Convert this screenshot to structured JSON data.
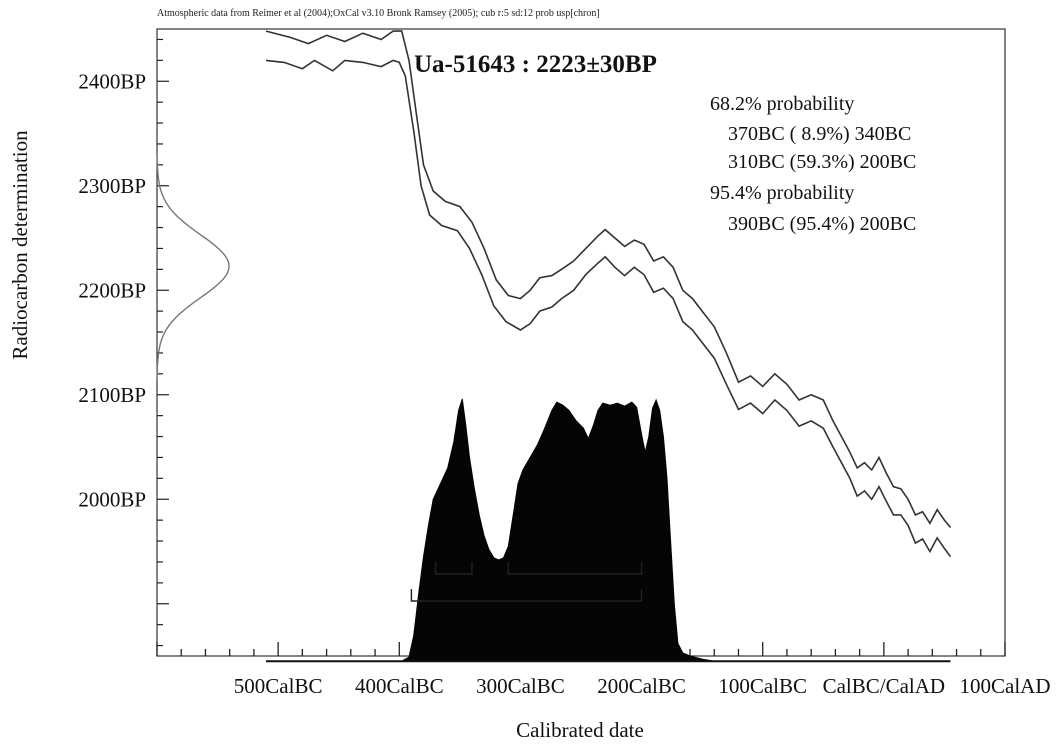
{
  "chart_data": {
    "type": "area",
    "header": "Atmospheric data from Reimer et al (2004);OxCal v3.10 Bronk Ramsey (2005); cub r:5 sd:12 prob usp[chron]",
    "title": "Ua-51643 : 2223±30BP",
    "xlabel": "Calibrated date",
    "ylabel": "Radiocarbon determination",
    "xlim": [
      -600,
      100
    ],
    "ylim": [
      1850,
      2450
    ],
    "x_tick_labels": [
      {
        "x": -500,
        "label": "500CalBC"
      },
      {
        "x": -400,
        "label": "400CalBC"
      },
      {
        "x": -300,
        "label": "300CalBC"
      },
      {
        "x": -200,
        "label": "200CalBC"
      },
      {
        "x": -100,
        "label": "100CalBC"
      },
      {
        "x": 0,
        "label": "CalBC/CalAD"
      },
      {
        "x": 100,
        "label": "100CalAD"
      }
    ],
    "y_tick_labels": [
      {
        "y": 2400,
        "label": "2400BP"
      },
      {
        "y": 2300,
        "label": "2300BP"
      },
      {
        "y": 2200,
        "label": "2200BP"
      },
      {
        "y": 2100,
        "label": "2100BP"
      },
      {
        "y": 2000,
        "label": "2000BP"
      }
    ],
    "annotations": [
      "68.2% probability",
      "370BC ( 8.9%) 340BC",
      "310BC (59.3%) 200BC",
      "95.4% probability",
      "390BC (95.4%) 200BC"
    ],
    "radiocarbon_measurement": {
      "mean": 2223,
      "sd": 30
    },
    "calibration_curve_upper": [
      [
        -510,
        2448
      ],
      [
        -490,
        2442
      ],
      [
        -475,
        2436
      ],
      [
        -460,
        2444
      ],
      [
        -445,
        2438
      ],
      [
        -430,
        2446
      ],
      [
        -415,
        2440
      ],
      [
        -405,
        2448
      ],
      [
        -398,
        2448
      ],
      [
        -392,
        2420
      ],
      [
        -386,
        2370
      ],
      [
        -380,
        2320
      ],
      [
        -372,
        2295
      ],
      [
        -362,
        2285
      ],
      [
        -350,
        2280
      ],
      [
        -340,
        2265
      ],
      [
        -330,
        2240
      ],
      [
        -320,
        2210
      ],
      [
        -310,
        2195
      ],
      [
        -300,
        2192
      ],
      [
        -292,
        2200
      ],
      [
        -284,
        2212
      ],
      [
        -274,
        2214
      ],
      [
        -266,
        2220
      ],
      [
        -256,
        2228
      ],
      [
        -246,
        2240
      ],
      [
        -236,
        2252
      ],
      [
        -230,
        2258
      ],
      [
        -222,
        2250
      ],
      [
        -214,
        2242
      ],
      [
        -206,
        2248
      ],
      [
        -198,
        2244
      ],
      [
        -190,
        2228
      ],
      [
        -182,
        2232
      ],
      [
        -174,
        2222
      ],
      [
        -166,
        2200
      ],
      [
        -158,
        2192
      ],
      [
        -150,
        2180
      ],
      [
        -140,
        2165
      ],
      [
        -130,
        2140
      ],
      [
        -120,
        2112
      ],
      [
        -110,
        2118
      ],
      [
        -100,
        2108
      ],
      [
        -90,
        2120
      ],
      [
        -80,
        2110
      ],
      [
        -70,
        2095
      ],
      [
        -60,
        2100
      ],
      [
        -50,
        2095
      ],
      [
        -42,
        2075
      ],
      [
        -35,
        2060
      ],
      [
        -28,
        2045
      ],
      [
        -22,
        2030
      ],
      [
        -16,
        2035
      ],
      [
        -10,
        2028
      ],
      [
        -4,
        2040
      ],
      [
        2,
        2025
      ],
      [
        8,
        2012
      ],
      [
        14,
        2010
      ],
      [
        20,
        2000
      ],
      [
        26,
        1985
      ],
      [
        32,
        1988
      ],
      [
        38,
        1977
      ],
      [
        44,
        1990
      ],
      [
        50,
        1980
      ],
      [
        55,
        1973
      ]
    ],
    "calibration_curve_lower": [
      [
        -510,
        2420
      ],
      [
        -495,
        2418
      ],
      [
        -480,
        2412
      ],
      [
        -470,
        2420
      ],
      [
        -455,
        2410
      ],
      [
        -445,
        2420
      ],
      [
        -430,
        2418
      ],
      [
        -415,
        2414
      ],
      [
        -405,
        2420
      ],
      [
        -400,
        2418
      ],
      [
        -395,
        2405
      ],
      [
        -388,
        2352
      ],
      [
        -382,
        2300
      ],
      [
        -375,
        2272
      ],
      [
        -365,
        2262
      ],
      [
        -352,
        2257
      ],
      [
        -342,
        2240
      ],
      [
        -332,
        2215
      ],
      [
        -322,
        2185
      ],
      [
        -312,
        2170
      ],
      [
        -300,
        2162
      ],
      [
        -292,
        2168
      ],
      [
        -284,
        2180
      ],
      [
        -274,
        2184
      ],
      [
        -266,
        2192
      ],
      [
        -256,
        2200
      ],
      [
        -246,
        2215
      ],
      [
        -236,
        2226
      ],
      [
        -230,
        2232
      ],
      [
        -222,
        2222
      ],
      [
        -214,
        2214
      ],
      [
        -206,
        2222
      ],
      [
        -198,
        2215
      ],
      [
        -190,
        2198
      ],
      [
        -182,
        2202
      ],
      [
        -174,
        2192
      ],
      [
        -166,
        2170
      ],
      [
        -158,
        2162
      ],
      [
        -150,
        2150
      ],
      [
        -140,
        2135
      ],
      [
        -130,
        2110
      ],
      [
        -120,
        2086
      ],
      [
        -110,
        2092
      ],
      [
        -100,
        2082
      ],
      [
        -90,
        2095
      ],
      [
        -80,
        2085
      ],
      [
        -70,
        2070
      ],
      [
        -60,
        2075
      ],
      [
        -50,
        2068
      ],
      [
        -42,
        2050
      ],
      [
        -35,
        2035
      ],
      [
        -28,
        2020
      ],
      [
        -22,
        2003
      ],
      [
        -16,
        2008
      ],
      [
        -10,
        2000
      ],
      [
        -4,
        2012
      ],
      [
        2,
        1998
      ],
      [
        8,
        1985
      ],
      [
        14,
        1985
      ],
      [
        20,
        1975
      ],
      [
        26,
        1958
      ],
      [
        32,
        1962
      ],
      [
        38,
        1950
      ],
      [
        44,
        1963
      ],
      [
        50,
        1953
      ],
      [
        55,
        1945
      ]
    ],
    "probability_distribution": [
      [
        -510,
        1845
      ],
      [
        -398,
        1845
      ],
      [
        -392,
        1849
      ],
      [
        -388,
        1870
      ],
      [
        -384,
        1910
      ],
      [
        -380,
        1945
      ],
      [
        -376,
        1975
      ],
      [
        -372,
        2000
      ],
      [
        -366,
        2015
      ],
      [
        -360,
        2030
      ],
      [
        -355,
        2055
      ],
      [
        -351,
        2085
      ],
      [
        -348,
        2096
      ],
      [
        -345,
        2070
      ],
      [
        -342,
        2040
      ],
      [
        -338,
        2010
      ],
      [
        -334,
        1985
      ],
      [
        -330,
        1965
      ],
      [
        -326,
        1952
      ],
      [
        -322,
        1944
      ],
      [
        -318,
        1942
      ],
      [
        -314,
        1944
      ],
      [
        -310,
        1955
      ],
      [
        -306,
        1985
      ],
      [
        -302,
        2015
      ],
      [
        -298,
        2028
      ],
      [
        -292,
        2040
      ],
      [
        -286,
        2052
      ],
      [
        -280,
        2068
      ],
      [
        -274,
        2085
      ],
      [
        -270,
        2093
      ],
      [
        -265,
        2090
      ],
      [
        -260,
        2085
      ],
      [
        -254,
        2075
      ],
      [
        -248,
        2068
      ],
      [
        -244,
        2058
      ],
      [
        -240,
        2070
      ],
      [
        -236,
        2085
      ],
      [
        -232,
        2092
      ],
      [
        -226,
        2090
      ],
      [
        -220,
        2092
      ],
      [
        -214,
        2089
      ],
      [
        -208,
        2093
      ],
      [
        -204,
        2088
      ],
      [
        -200,
        2062
      ],
      [
        -197,
        2045
      ],
      [
        -194,
        2060
      ],
      [
        -191,
        2087
      ],
      [
        -188,
        2095
      ],
      [
        -185,
        2085
      ],
      [
        -182,
        2060
      ],
      [
        -179,
        2020
      ],
      [
        -176,
        1960
      ],
      [
        -173,
        1900
      ],
      [
        -170,
        1862
      ],
      [
        -166,
        1853
      ],
      [
        -160,
        1850
      ],
      [
        -150,
        1847
      ],
      [
        -140,
        1845
      ],
      [
        55,
        1845
      ]
    ],
    "range_brackets": {
      "probability_68": [
        [
          -370,
          -340
        ],
        [
          -310,
          -200
        ]
      ],
      "probability_95": [
        [
          -390,
          -200
        ]
      ]
    },
    "grid": false
  }
}
